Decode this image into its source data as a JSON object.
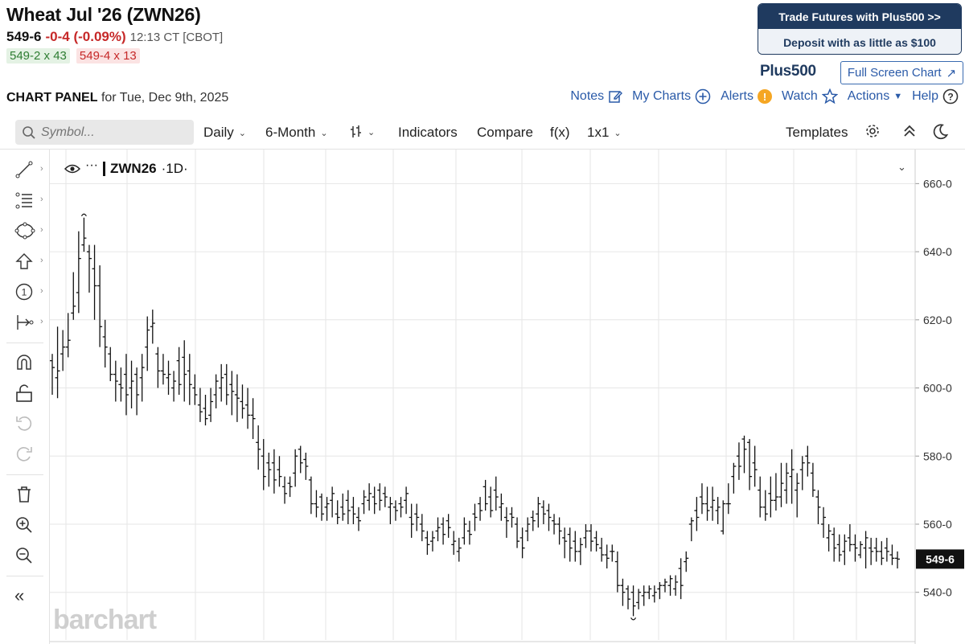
{
  "header": {
    "title": "Wheat Jul '26 (ZWN26)",
    "price": "549-6",
    "change": "-0-4 (-0.09%)",
    "time": "12:13 CT [CBOT]",
    "bid": "549-2 x 43",
    "ask": "549-4 x 13"
  },
  "ad": {
    "line1": "Trade Futures with Plus500 >>",
    "line2": "Deposit with as little as $100",
    "logo": "Plus500"
  },
  "fullscreen_label": "Full Screen Chart",
  "panel": {
    "label_bold": "CHART PANEL",
    "label_rest": "for Tue, Dec 9th, 2025",
    "links": {
      "notes": "Notes",
      "mycharts": "My Charts",
      "alerts": "Alerts",
      "watch": "Watch",
      "actions": "Actions",
      "help": "Help"
    }
  },
  "toolbar": {
    "search_placeholder": "Symbol...",
    "interval": "Daily",
    "range": "6-Month",
    "indicators": "Indicators",
    "compare": "Compare",
    "fx": "f(x)",
    "layout": "1x1",
    "templates": "Templates"
  },
  "legend": {
    "symbol": "ZWN26",
    "period": "·1D·"
  },
  "watermark": "barchart",
  "colors": {
    "accent": "#2a5aa8",
    "down": "#c62828",
    "up": "#2e7d32",
    "navy": "#1f3a5f"
  },
  "chart_data": {
    "type": "ohlc",
    "symbol": "ZWN26",
    "y_tick_labels": [
      "540-0",
      "560-0",
      "580-0",
      "600-0",
      "620-0",
      "640-0",
      "660-0"
    ],
    "y_ticks": [
      540,
      560,
      580,
      600,
      620,
      640,
      660
    ],
    "ylim": [
      526,
      670
    ],
    "current_price": 549.75,
    "current_price_label": "549-6",
    "grid": true,
    "bars": [
      [
        608,
        610,
        598,
        606
      ],
      [
        603,
        618,
        597,
        605
      ],
      [
        610,
        617,
        605,
        612
      ],
      [
        612,
        622,
        609,
        614
      ],
      [
        622,
        634,
        620,
        624
      ],
      [
        628,
        646,
        622,
        638
      ],
      [
        642,
        650,
        640,
        644
      ],
      [
        640,
        642,
        628,
        638
      ],
      [
        635,
        642,
        620,
        630
      ],
      [
        630,
        636,
        612,
        618
      ],
      [
        615,
        620,
        606,
        612
      ],
      [
        610,
        612,
        602,
        604
      ],
      [
        604,
        608,
        596,
        602
      ],
      [
        601,
        606,
        596,
        600
      ],
      [
        604,
        610,
        592,
        598
      ],
      [
        600,
        608,
        594,
        602
      ],
      [
        604,
        606,
        592,
        598
      ],
      [
        603,
        610,
        596,
        606
      ],
      [
        612,
        621,
        605,
        617
      ],
      [
        618,
        623,
        613,
        619
      ],
      [
        610,
        612,
        600,
        605
      ],
      [
        605,
        610,
        601,
        604
      ],
      [
        603,
        608,
        598,
        604
      ],
      [
        600,
        605,
        596,
        602
      ],
      [
        608,
        612,
        598,
        601
      ],
      [
        609,
        614,
        596,
        604
      ],
      [
        605,
        610,
        595,
        601
      ],
      [
        600,
        604,
        595,
        598
      ],
      [
        595,
        600,
        590,
        593
      ],
      [
        594,
        598,
        589,
        591
      ],
      [
        592,
        600,
        590,
        596
      ],
      [
        598,
        604,
        594,
        602
      ],
      [
        600,
        607,
        596,
        603
      ],
      [
        604,
        607,
        595,
        598
      ],
      [
        601,
        605,
        592,
        599
      ],
      [
        598,
        604,
        590,
        597
      ],
      [
        596,
        601,
        591,
        594
      ],
      [
        595,
        600,
        588,
        592
      ],
      [
        592,
        597,
        585,
        591
      ],
      [
        584,
        589,
        576,
        582
      ],
      [
        580,
        585,
        570,
        574
      ],
      [
        578,
        581,
        571,
        576
      ],
      [
        578,
        582,
        569,
        573
      ],
      [
        576,
        580,
        571,
        574
      ],
      [
        571,
        574,
        566,
        569
      ],
      [
        572,
        574,
        568,
        571
      ],
      [
        575,
        582,
        571,
        580
      ],
      [
        582,
        583,
        575,
        578
      ],
      [
        579,
        581,
        573,
        577
      ],
      [
        573,
        574,
        563,
        566
      ],
      [
        566,
        570,
        562,
        565
      ],
      [
        568,
        569,
        561,
        563
      ],
      [
        565,
        568,
        561,
        566
      ],
      [
        567,
        571,
        562,
        569
      ],
      [
        563,
        567,
        560,
        562
      ],
      [
        565,
        569,
        561,
        563
      ],
      [
        567,
        570,
        560,
        564
      ],
      [
        565,
        568,
        560,
        563
      ],
      [
        562,
        565,
        558,
        561
      ],
      [
        566,
        570,
        563,
        568
      ],
      [
        567,
        572,
        564,
        569
      ],
      [
        568,
        571,
        563,
        566
      ],
      [
        570,
        572,
        564,
        567
      ],
      [
        569,
        571,
        565,
        568
      ],
      [
        565,
        568,
        560,
        566
      ],
      [
        565,
        567,
        561,
        564
      ],
      [
        566,
        568,
        562,
        565
      ],
      [
        567,
        571,
        563,
        569
      ],
      [
        562,
        566,
        556,
        560
      ],
      [
        563,
        566,
        558,
        562
      ],
      [
        560,
        563,
        555,
        558
      ],
      [
        556,
        558,
        551,
        554
      ],
      [
        555,
        558,
        552,
        556
      ],
      [
        558,
        562,
        555,
        559
      ],
      [
        560,
        562,
        554,
        557
      ],
      [
        561,
        563,
        556,
        559
      ],
      [
        554,
        558,
        551,
        555
      ],
      [
        552,
        556,
        549,
        553
      ],
      [
        556,
        562,
        554,
        560
      ],
      [
        558,
        561,
        554,
        557
      ],
      [
        563,
        566,
        558,
        562
      ],
      [
        566,
        568,
        561,
        564
      ],
      [
        571,
        573,
        564,
        566
      ],
      [
        568,
        571,
        562,
        564
      ],
      [
        570,
        574,
        564,
        568
      ],
      [
        565,
        569,
        561,
        566
      ],
      [
        562,
        565,
        556,
        561
      ],
      [
        563,
        565,
        559,
        562
      ],
      [
        560,
        562,
        553,
        555
      ],
      [
        556,
        559,
        550,
        553
      ],
      [
        558,
        562,
        555,
        560
      ],
      [
        562,
        564,
        558,
        561
      ],
      [
        563,
        568,
        559,
        566
      ],
      [
        565,
        567,
        560,
        563
      ],
      [
        564,
        566,
        558,
        562
      ],
      [
        561,
        563,
        557,
        560
      ],
      [
        560,
        562,
        554,
        558
      ],
      [
        556,
        559,
        550,
        555
      ],
      [
        557,
        559,
        549,
        553
      ],
      [
        555,
        558,
        549,
        552
      ],
      [
        552,
        556,
        548,
        554
      ],
      [
        556,
        560,
        553,
        558
      ],
      [
        558,
        560,
        552,
        555
      ],
      [
        556,
        558,
        552,
        554
      ],
      [
        553,
        556,
        549,
        551
      ],
      [
        551,
        554,
        547,
        550
      ],
      [
        552,
        554,
        549,
        552
      ],
      [
        549,
        552,
        540,
        542
      ],
      [
        542,
        544,
        536,
        540
      ],
      [
        541,
        542,
        535,
        538
      ],
      [
        540,
        542,
        533,
        536
      ],
      [
        537,
        541,
        535,
        540
      ],
      [
        539,
        542,
        536,
        540
      ],
      [
        540,
        542,
        538,
        541
      ],
      [
        539,
        542,
        537,
        540
      ],
      [
        541,
        543,
        538,
        542
      ],
      [
        542,
        544,
        540,
        543
      ],
      [
        542,
        545,
        539,
        544
      ],
      [
        541,
        545,
        539,
        543
      ],
      [
        547,
        550,
        538,
        542
      ],
      [
        549,
        552,
        546,
        550
      ],
      [
        560,
        562,
        555,
        561
      ],
      [
        564,
        568,
        558,
        562
      ],
      [
        568,
        572,
        563,
        566
      ],
      [
        566,
        571,
        561,
        564
      ],
      [
        565,
        571,
        561,
        567
      ],
      [
        564,
        568,
        560,
        565
      ],
      [
        558,
        567,
        557,
        566
      ],
      [
        566,
        572,
        563,
        566
      ],
      [
        574,
        578,
        569,
        577
      ],
      [
        580,
        584,
        573,
        577
      ],
      [
        585,
        586,
        575,
        582
      ],
      [
        584,
        585,
        570,
        574
      ],
      [
        578,
        583,
        571,
        576
      ],
      [
        570,
        574,
        562,
        565
      ],
      [
        565,
        570,
        561,
        563
      ],
      [
        569,
        574,
        562,
        567
      ],
      [
        567,
        575,
        564,
        568
      ],
      [
        568,
        578,
        565,
        572
      ],
      [
        570,
        578,
        566,
        575
      ],
      [
        574,
        582,
        566,
        576
      ],
      [
        570,
        575,
        562,
        572
      ],
      [
        576,
        580,
        570,
        578
      ],
      [
        580,
        583,
        574,
        578
      ],
      [
        575,
        578,
        568,
        570
      ],
      [
        568,
        570,
        560,
        565
      ],
      [
        560,
        565,
        556,
        562
      ],
      [
        556,
        560,
        552,
        558
      ],
      [
        557,
        559,
        549,
        553
      ],
      [
        554,
        557,
        549,
        551
      ],
      [
        552,
        557,
        548,
        555
      ],
      [
        556,
        560,
        552,
        554
      ],
      [
        554,
        557,
        549,
        553
      ],
      [
        551,
        555,
        550,
        554
      ],
      [
        553,
        558,
        547,
        556
      ],
      [
        553,
        556,
        548,
        552
      ],
      [
        553,
        556,
        549,
        552
      ],
      [
        552,
        555,
        548,
        550
      ],
      [
        553,
        556,
        549,
        552
      ],
      [
        551,
        554,
        548,
        550
      ],
      [
        550,
        552,
        547,
        549.75
      ]
    ]
  }
}
